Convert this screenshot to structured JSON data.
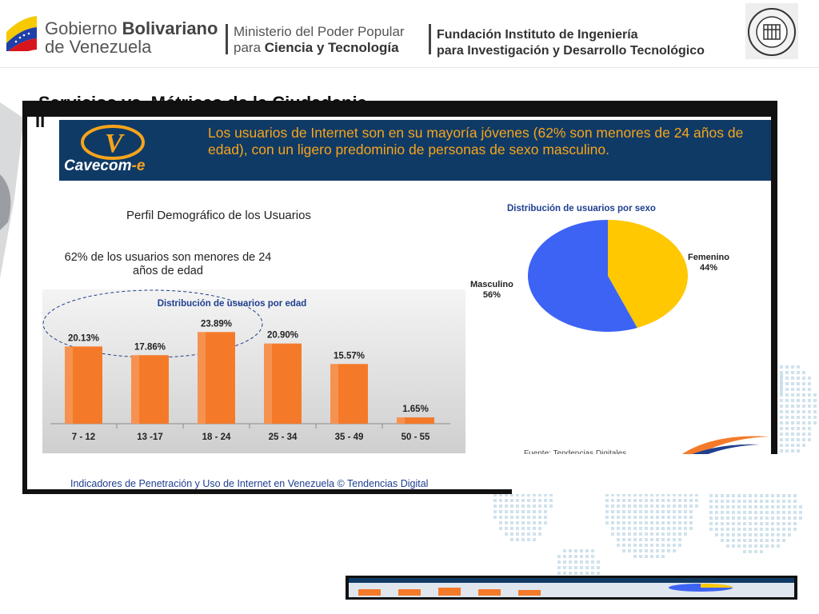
{
  "header": {
    "gov_line1": "Gobierno ",
    "gov_line1_bold": "Bolivariano",
    "gov_line2": "de Venezuela",
    "ministry_line1": "Ministerio del Poder Popular",
    "ministry_line2": "para ",
    "ministry_line2_bold": "Ciencia y Tecnología",
    "fund_line1": "Fundación Instituto de Ingeniería",
    "fund_line2": "para Investigación y Desarrollo Tecnológico",
    "seal_text": "FUNDACION INSTITUTO DE INGENIERIA"
  },
  "slide": {
    "title": "Servicios vs. Métricas de la Ciudadania",
    "title_line2": "II",
    "logo": {
      "name": "Cavecom",
      "suffix": "-e",
      "mark": "V"
    },
    "banner_text": "Los usuarios de Internet son en su mayoría jóvenes (62% son menores de 24 años de edad), con un ligero predominio de personas de sexo masculino.",
    "perfil_title": "Perfil Demográfico de los Usuarios",
    "sub_text": "62% de los usuarios son menores de 24 años de edad",
    "source": "Fuente: Tendencias Digitales",
    "footer": "Indicadores de Penetración y Uso de Internet en Venezuela © Tendencias Digital"
  },
  "colors": {
    "banner_bg": "#0f3a66",
    "banner_text": "#f7a41b",
    "bar": "#f47a2a",
    "pie_blue": "#3d63f4",
    "pie_yellow": "#ffc800",
    "chart_title": "#1f3f8f"
  },
  "chart_data": [
    {
      "type": "bar",
      "title": "Distribución de usuarios por edad",
      "categories": [
        "7 - 12",
        "13 -17",
        "18 - 24",
        "25 - 34",
        "35 - 49",
        "50 - 55"
      ],
      "values": [
        20.13,
        17.86,
        23.89,
        20.9,
        15.57,
        1.65
      ],
      "value_labels": [
        "20.13%",
        "17.86%",
        "23.89%",
        "20.90%",
        "15.57%",
        "1.65%"
      ],
      "ylim": [
        0,
        25
      ],
      "grid": false
    },
    {
      "type": "pie",
      "title": "Distribución de usuarios por sexo",
      "labels": [
        "Femenino",
        "Masculino"
      ],
      "values": [
        44,
        56
      ],
      "value_labels": [
        "44%",
        "56%"
      ]
    }
  ]
}
